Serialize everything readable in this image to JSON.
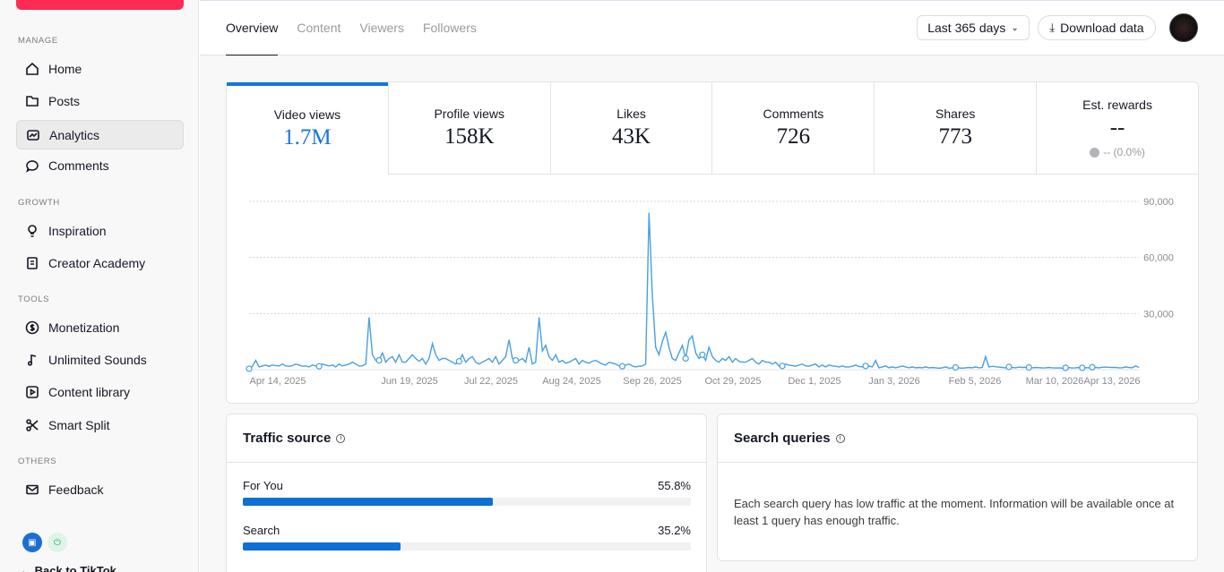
{
  "sidebar": {
    "sections": [
      {
        "label": "MANAGE",
        "items": [
          {
            "label": "Home",
            "icon": "home-icon"
          },
          {
            "label": "Posts",
            "icon": "folder-icon"
          },
          {
            "label": "Analytics",
            "icon": "analytics-icon",
            "active": true
          },
          {
            "label": "Comments",
            "icon": "comment-icon"
          }
        ]
      },
      {
        "label": "GROWTH",
        "items": [
          {
            "label": "Inspiration",
            "icon": "bulb-icon"
          },
          {
            "label": "Creator Academy",
            "icon": "book-icon"
          }
        ]
      },
      {
        "label": "TOOLS",
        "items": [
          {
            "label": "Monetization",
            "icon": "dollar-icon"
          },
          {
            "label": "Unlimited Sounds",
            "icon": "music-icon"
          },
          {
            "label": "Content library",
            "icon": "play-icon"
          },
          {
            "label": "Smart Split",
            "icon": "scissors-icon"
          }
        ]
      },
      {
        "label": "OTHERS",
        "items": [
          {
            "label": "Feedback",
            "icon": "mail-icon"
          }
        ]
      }
    ],
    "back_link": "Back to TikTok"
  },
  "topbar": {
    "tabs": [
      {
        "label": "Overview",
        "active": true
      },
      {
        "label": "Content"
      },
      {
        "label": "Viewers"
      },
      {
        "label": "Followers"
      }
    ],
    "range": "Last 365 days",
    "download": "Download data"
  },
  "metrics": [
    {
      "label": "Video views",
      "value": "1.7M",
      "active": true
    },
    {
      "label": "Profile views",
      "value": "158K"
    },
    {
      "label": "Likes",
      "value": "43K"
    },
    {
      "label": "Comments",
      "value": "726"
    },
    {
      "label": "Shares",
      "value": "773"
    },
    {
      "label": "Est. rewards",
      "value": "--",
      "sub": "-- (0.0%)"
    }
  ],
  "chart_data": {
    "type": "line",
    "ylim": [
      0,
      90000
    ],
    "y_ticks": [
      "90,000",
      "60,000",
      "30,000"
    ],
    "x_ticks": [
      "Apr 14, 2025",
      "Jun 19, 2025",
      "Jul 22, 2025",
      "Aug 24, 2025",
      "Sep 26, 2025",
      "Oct 29, 2025",
      "Dec 1, 2025",
      "Jan 3, 2026",
      "Feb 5, 2026",
      "Mar 10, 2026",
      "Apr 13, 2026"
    ],
    "color": "#4a9fe0",
    "series": [
      {
        "values": [
          500,
          1800,
          5000,
          1500,
          2000,
          2500,
          1800,
          2500,
          2200,
          2000,
          3000,
          2000,
          1800,
          2200,
          3000,
          2500,
          1800,
          2000,
          1500,
          2500,
          2000,
          1800,
          3000,
          2500,
          2000,
          2500,
          1500,
          3000,
          2000,
          2500,
          3000,
          4000,
          3000,
          2000,
          2000,
          3000,
          28000,
          8000,
          5000,
          5000,
          9000,
          4000,
          6000,
          7000,
          4000,
          8000,
          4000,
          4000,
          6000,
          8000,
          6000,
          4500,
          6000,
          3000,
          6000,
          14000,
          8000,
          5000,
          6000,
          6000,
          5000,
          4000,
          3000,
          4500,
          8000,
          4000,
          6000,
          7000,
          4000,
          3000,
          4000,
          5000,
          6000,
          4000,
          7000,
          3000,
          5000,
          7000,
          16000,
          6000,
          5000,
          5000,
          6000,
          4000,
          12000,
          3000,
          4000,
          28000,
          10000,
          13000,
          7000,
          5000,
          8000,
          4000,
          5000,
          3500,
          4000,
          5000,
          6000,
          3000,
          5000,
          4000,
          3500,
          4500,
          5000,
          4000,
          3000,
          2500,
          4000,
          3500,
          3000,
          2000,
          1800,
          2500,
          3000,
          2000,
          1500,
          1800,
          2000,
          3000,
          84000,
          40000,
          12000,
          8000,
          15000,
          20000,
          12000,
          6000,
          5000,
          9000,
          13000,
          6000,
          16000,
          18000,
          9000,
          6000,
          8000,
          5000,
          12000,
          7000,
          5000,
          4000,
          6000,
          5000,
          7000,
          4000,
          6000,
          4500,
          4000,
          4000,
          5000,
          6000,
          4000,
          3000,
          5000,
          4000,
          4000,
          3000,
          4000,
          2000,
          2000,
          3000,
          2500,
          2200,
          1800,
          2500,
          3000,
          2000,
          1800,
          2500,
          3000,
          1500,
          2500,
          1500,
          2500,
          2000,
          1800,
          1500,
          2000,
          1500,
          1500,
          1800,
          2500,
          1700,
          1500,
          2000,
          2000,
          1500,
          5000,
          1000,
          1500,
          2000,
          1000,
          1500,
          1000,
          1500,
          2000,
          1500,
          1000,
          1500,
          1000,
          1200,
          1000,
          1500,
          1000,
          1200,
          1000,
          800,
          1000,
          1500,
          800,
          1000,
          1200,
          1000,
          800,
          1000,
          1200,
          1000,
          1500,
          1000,
          1200,
          7000,
          1500,
          1800,
          1600,
          1400,
          1200,
          1000,
          1500,
          1200,
          1000,
          1400,
          1200,
          1300,
          1200,
          1000,
          1200,
          1100,
          900,
          1000,
          1200,
          1000,
          900,
          1000,
          800,
          1000,
          1100,
          900,
          1000,
          1200,
          1000,
          1100,
          1000,
          1300,
          1200,
          1000,
          1300,
          1400,
          1300,
          1200,
          1200,
          1000,
          1000,
          1500,
          1200,
          1000,
          2000,
          1200
        ]
      }
    ],
    "markers_at": [
      0,
      21,
      39,
      63,
      80,
      112,
      136,
      131,
      160,
      185,
      212,
      245,
      228,
      234,
      250,
      253
    ]
  },
  "traffic": {
    "title": "Traffic source",
    "rows": [
      {
        "label": "For You",
        "pct": "55.8%",
        "value": 0.558
      },
      {
        "label": "Search",
        "pct": "35.2%",
        "value": 0.352
      }
    ]
  },
  "search": {
    "title": "Search queries",
    "text": "Each search query has low traffic at the moment. Information will be available once at least 1 query has enough traffic."
  }
}
